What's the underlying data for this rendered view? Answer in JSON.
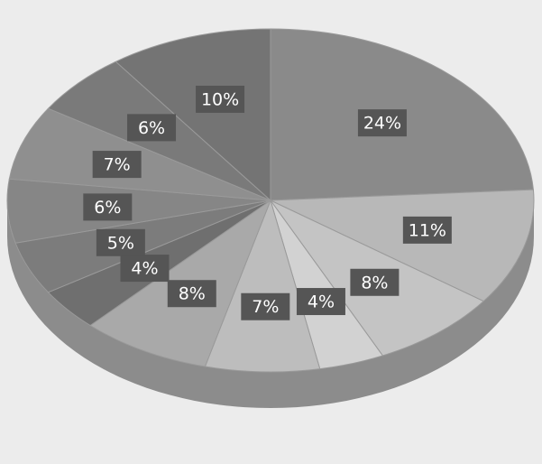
{
  "chart_data": {
    "type": "pie",
    "values": [
      24,
      11,
      8,
      4,
      7,
      8,
      4,
      5,
      6,
      7,
      6,
      10
    ],
    "value_labels": [
      "24%",
      "11%",
      "8%",
      "4%",
      "7%",
      "8%",
      "4%",
      "5%",
      "6%",
      "7%",
      "6%",
      "10%"
    ],
    "colors": [
      "#8a8a8a",
      "#b8b8b8",
      "#c4c4c4",
      "#d2d2d2",
      "#bdbdbd",
      "#a9a9a9",
      "#6f6f6f",
      "#7c7c7c",
      "#868686",
      "#8f8f8f",
      "#7a7a7a",
      "#747474"
    ]
  }
}
